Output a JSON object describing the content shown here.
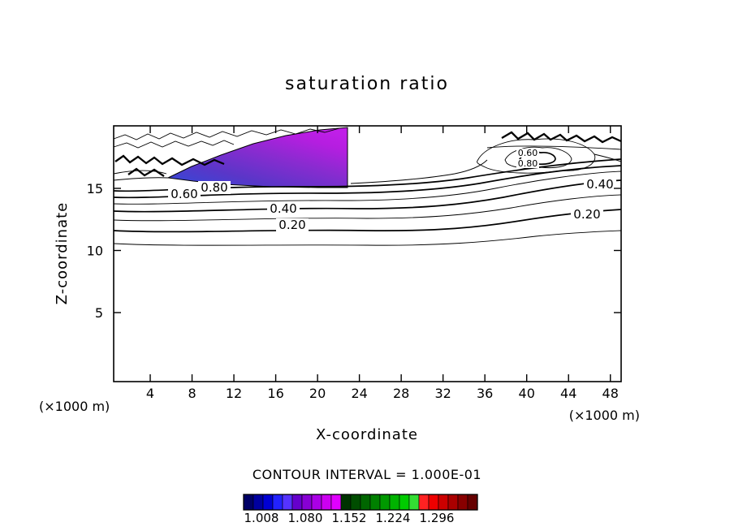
{
  "chart_data": {
    "type": "contour",
    "title": "saturation ratio",
    "xlabel": "X-coordinate",
    "ylabel": "Z-coordinate",
    "x_unit_label": "(×1000 m)",
    "y_unit_label": "(×1000 m)",
    "x_ticks": [
      "4",
      "8",
      "12",
      "16",
      "20",
      "24",
      "28",
      "32",
      "36",
      "40",
      "44",
      "48"
    ],
    "y_ticks": [
      "5",
      "10",
      "15"
    ],
    "x_range_thousand_m": [
      0,
      50
    ],
    "y_range_thousand_m": [
      0,
      20
    ],
    "grid": false,
    "contour_interval": 0.1,
    "contour_interval_label": "CONTOUR INTERVAL = 1.000E-01",
    "levels": [
      {
        "value": 0.2,
        "label": "0.20"
      },
      {
        "value": 0.4,
        "label": "0.40"
      },
      {
        "value": 0.6,
        "label": "0.60"
      },
      {
        "value": 0.8,
        "label": "0.80"
      }
    ],
    "filled_region": {
      "description": "saturation ratio > 1.0 plume in upper-left of domain, x ~ 5-23 (x1000 m), z ~ 15-20 (x1000 m), shaded blue to magenta",
      "colors": [
        "#2e4bd8",
        "#5a36c8",
        "#8a2bd0",
        "#bb1ee4"
      ]
    },
    "colorbar": {
      "labels": [
        "1.008",
        "1.080",
        "1.152",
        "1.224",
        "1.296"
      ],
      "colors": [
        "#000066",
        "#0000a0",
        "#0000d4",
        "#2222ff",
        "#5533ff",
        "#6600cc",
        "#8800d4",
        "#aa00e6",
        "#cc00f0",
        "#e000ff",
        "#003300",
        "#004d00",
        "#006600",
        "#008000",
        "#009900",
        "#00b300",
        "#00cc00",
        "#33dd33",
        "#ff2222",
        "#ee0000",
        "#cc0000",
        "#aa0000",
        "#880000",
        "#660000"
      ]
    },
    "axis_color": "#000000",
    "background_color": "#ffffff"
  }
}
